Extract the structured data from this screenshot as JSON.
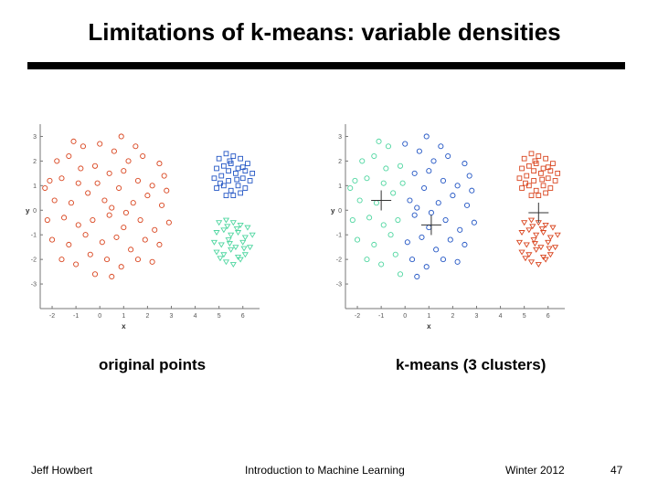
{
  "slide": {
    "title": "Limitations of k-means: variable densities",
    "caption_left": "original points",
    "caption_right": "k-means (3 clusters)",
    "footer": {
      "author": "Jeff Howbert",
      "course": "Introduction to Machine Learning",
      "term": "Winter 2012",
      "page": "47"
    }
  },
  "colors": {
    "red": "#d9451f",
    "blue": "#2255c4",
    "green": "#4fd6a0",
    "axis": "#777777"
  },
  "chart_data": [
    {
      "type": "scatter",
      "title": "",
      "xlabel": "x",
      "ylabel": "y",
      "xlim": [
        -2.5,
        6.7
      ],
      "ylim": [
        -4,
        3.5
      ],
      "xticks": [
        -2,
        -1,
        0,
        1,
        2,
        3,
        4,
        5,
        6
      ],
      "yticks": [
        3,
        2,
        1,
        0,
        -1,
        -2,
        -3
      ],
      "series": [
        {
          "color": "red",
          "marker": "circle",
          "points": [
            [
              -1.8,
              2.0
            ],
            [
              -1.3,
              2.2
            ],
            [
              -0.7,
              2.6
            ],
            [
              0.0,
              2.7
            ],
            [
              0.6,
              2.4
            ],
            [
              1.2,
              2.0
            ],
            [
              1.8,
              2.2
            ],
            [
              2.5,
              1.9
            ],
            [
              -2.1,
              1.2
            ],
            [
              -1.6,
              1.3
            ],
            [
              -0.8,
              1.7
            ],
            [
              -0.2,
              1.8
            ],
            [
              0.4,
              1.5
            ],
            [
              1.0,
              1.6
            ],
            [
              1.6,
              1.2
            ],
            [
              2.2,
              1.0
            ],
            [
              2.8,
              0.8
            ],
            [
              -1.9,
              0.4
            ],
            [
              -1.2,
              0.3
            ],
            [
              -0.5,
              0.7
            ],
            [
              0.2,
              0.4
            ],
            [
              0.8,
              0.9
            ],
            [
              1.4,
              0.3
            ],
            [
              2.0,
              0.6
            ],
            [
              2.6,
              0.2
            ],
            [
              -2.2,
              -0.4
            ],
            [
              -1.5,
              -0.3
            ],
            [
              -0.9,
              -0.6
            ],
            [
              -0.3,
              -0.4
            ],
            [
              0.4,
              -0.2
            ],
            [
              1.0,
              -0.7
            ],
            [
              1.7,
              -0.4
            ],
            [
              2.3,
              -0.8
            ],
            [
              2.9,
              -0.5
            ],
            [
              -2.0,
              -1.2
            ],
            [
              -1.3,
              -1.4
            ],
            [
              -0.6,
              -1.0
            ],
            [
              0.1,
              -1.3
            ],
            [
              0.7,
              -1.1
            ],
            [
              1.3,
              -1.6
            ],
            [
              1.9,
              -1.2
            ],
            [
              2.5,
              -1.4
            ],
            [
              -1.6,
              -2.0
            ],
            [
              -1.0,
              -2.2
            ],
            [
              -0.4,
              -1.8
            ],
            [
              0.3,
              -2.0
            ],
            [
              0.9,
              -2.3
            ],
            [
              1.6,
              -2.0
            ],
            [
              2.2,
              -2.1
            ],
            [
              -1.1,
              2.8
            ],
            [
              0.9,
              3.0
            ],
            [
              -0.2,
              -2.6
            ],
            [
              0.5,
              -2.7
            ],
            [
              -0.9,
              1.1
            ],
            [
              0.5,
              0.1
            ],
            [
              1.1,
              -0.1
            ],
            [
              -0.1,
              1.1
            ],
            [
              2.7,
              1.4
            ],
            [
              -2.3,
              0.9
            ],
            [
              1.5,
              2.6
            ]
          ]
        },
        {
          "color": "blue",
          "marker": "square",
          "points": [
            [
              5.0,
              2.1
            ],
            [
              5.3,
              2.3
            ],
            [
              5.6,
              2.2
            ],
            [
              5.9,
              2.1
            ],
            [
              6.2,
              1.9
            ],
            [
              4.9,
              1.7
            ],
            [
              5.2,
              1.8
            ],
            [
              5.5,
              1.9
            ],
            [
              5.8,
              1.7
            ],
            [
              6.1,
              1.6
            ],
            [
              6.4,
              1.5
            ],
            [
              4.8,
              1.3
            ],
            [
              5.1,
              1.4
            ],
            [
              5.4,
              1.2
            ],
            [
              5.7,
              1.5
            ],
            [
              6.0,
              1.3
            ],
            [
              6.3,
              1.2
            ],
            [
              4.9,
              0.9
            ],
            [
              5.2,
              1.0
            ],
            [
              5.5,
              0.8
            ],
            [
              5.8,
              1.0
            ],
            [
              6.1,
              0.9
            ],
            [
              5.3,
              0.6
            ],
            [
              5.6,
              0.6
            ],
            [
              5.9,
              0.7
            ],
            [
              5.4,
              1.6
            ],
            [
              5.75,
              1.25
            ],
            [
              5.05,
              1.1
            ],
            [
              6.0,
              1.75
            ],
            [
              5.45,
              2.0
            ]
          ]
        },
        {
          "color": "green",
          "marker": "triangle",
          "points": [
            [
              5.0,
              -0.5
            ],
            [
              5.3,
              -0.4
            ],
            [
              5.6,
              -0.5
            ],
            [
              5.9,
              -0.6
            ],
            [
              6.2,
              -0.7
            ],
            [
              4.9,
              -0.9
            ],
            [
              5.2,
              -0.8
            ],
            [
              5.5,
              -1.0
            ],
            [
              5.8,
              -0.9
            ],
            [
              6.1,
              -1.1
            ],
            [
              6.4,
              -1.0
            ],
            [
              4.8,
              -1.3
            ],
            [
              5.1,
              -1.4
            ],
            [
              5.4,
              -1.2
            ],
            [
              5.7,
              -1.5
            ],
            [
              6.0,
              -1.3
            ],
            [
              6.3,
              -1.5
            ],
            [
              4.9,
              -1.7
            ],
            [
              5.2,
              -1.8
            ],
            [
              5.5,
              -1.6
            ],
            [
              5.8,
              -1.9
            ],
            [
              6.1,
              -1.8
            ],
            [
              5.3,
              -2.1
            ],
            [
              5.6,
              -2.2
            ],
            [
              5.9,
              -2.0
            ],
            [
              5.45,
              -1.35
            ],
            [
              5.75,
              -0.75
            ],
            [
              5.05,
              -1.95
            ],
            [
              6.05,
              -1.55
            ],
            [
              5.35,
              -0.65
            ]
          ]
        }
      ]
    },
    {
      "type": "scatter",
      "title": "",
      "xlabel": "x",
      "ylabel": "y",
      "xlim": [
        -2.5,
        6.7
      ],
      "ylim": [
        -4,
        3.5
      ],
      "xticks": [
        -2,
        -1,
        0,
        1,
        2,
        3,
        4,
        5,
        6
      ],
      "yticks": [
        3,
        2,
        1,
        0,
        -1,
        -2,
        -3
      ],
      "centroids": [
        [
          -1.0,
          0.4
        ],
        [
          1.1,
          -0.6
        ],
        [
          5.6,
          -0.1
        ]
      ],
      "series": [
        {
          "color": "green",
          "marker": "circle",
          "points": [
            [
              -1.8,
              2.0
            ],
            [
              -1.3,
              2.2
            ],
            [
              -0.7,
              2.6
            ],
            [
              -2.1,
              1.2
            ],
            [
              -1.6,
              1.3
            ],
            [
              -0.8,
              1.7
            ],
            [
              -1.9,
              0.4
            ],
            [
              -1.2,
              0.3
            ],
            [
              -0.5,
              0.7
            ],
            [
              -2.2,
              -0.4
            ],
            [
              -1.5,
              -0.3
            ],
            [
              -0.9,
              -0.6
            ],
            [
              -2.0,
              -1.2
            ],
            [
              -1.3,
              -1.4
            ],
            [
              -0.6,
              -1.0
            ],
            [
              -1.6,
              -2.0
            ],
            [
              -1.0,
              -2.2
            ],
            [
              -0.4,
              -1.8
            ],
            [
              -1.1,
              2.8
            ],
            [
              -0.2,
              1.8
            ],
            [
              -0.3,
              -0.4
            ],
            [
              -0.9,
              1.1
            ],
            [
              -2.3,
              0.9
            ],
            [
              -0.2,
              -2.6
            ],
            [
              -0.1,
              1.1
            ]
          ]
        },
        {
          "color": "blue",
          "marker": "circle",
          "points": [
            [
              0.0,
              2.7
            ],
            [
              0.6,
              2.4
            ],
            [
              1.2,
              2.0
            ],
            [
              1.8,
              2.2
            ],
            [
              2.5,
              1.9
            ],
            [
              0.4,
              1.5
            ],
            [
              1.0,
              1.6
            ],
            [
              1.6,
              1.2
            ],
            [
              2.2,
              1.0
            ],
            [
              2.8,
              0.8
            ],
            [
              0.2,
              0.4
            ],
            [
              0.8,
              0.9
            ],
            [
              1.4,
              0.3
            ],
            [
              2.0,
              0.6
            ],
            [
              2.6,
              0.2
            ],
            [
              0.4,
              -0.2
            ],
            [
              1.0,
              -0.7
            ],
            [
              1.7,
              -0.4
            ],
            [
              2.3,
              -0.8
            ],
            [
              2.9,
              -0.5
            ],
            [
              0.1,
              -1.3
            ],
            [
              0.7,
              -1.1
            ],
            [
              1.3,
              -1.6
            ],
            [
              1.9,
              -1.2
            ],
            [
              2.5,
              -1.4
            ],
            [
              0.3,
              -2.0
            ],
            [
              0.9,
              -2.3
            ],
            [
              1.6,
              -2.0
            ],
            [
              2.2,
              -2.1
            ],
            [
              0.9,
              3.0
            ],
            [
              0.5,
              -2.7
            ],
            [
              0.5,
              0.1
            ],
            [
              1.1,
              -0.1
            ],
            [
              2.7,
              1.4
            ],
            [
              1.5,
              2.6
            ]
          ]
        },
        {
          "color": "red",
          "marker": "square",
          "points": [
            [
              5.0,
              2.1
            ],
            [
              5.3,
              2.3
            ],
            [
              5.6,
              2.2
            ],
            [
              5.9,
              2.1
            ],
            [
              6.2,
              1.9
            ],
            [
              4.9,
              1.7
            ],
            [
              5.2,
              1.8
            ],
            [
              5.5,
              1.9
            ],
            [
              5.8,
              1.7
            ],
            [
              6.1,
              1.6
            ],
            [
              6.4,
              1.5
            ],
            [
              4.8,
              1.3
            ],
            [
              5.1,
              1.4
            ],
            [
              5.4,
              1.2
            ],
            [
              5.7,
              1.5
            ],
            [
              6.0,
              1.3
            ],
            [
              6.3,
              1.2
            ],
            [
              4.9,
              0.9
            ],
            [
              5.2,
              1.0
            ],
            [
              5.5,
              0.8
            ],
            [
              5.8,
              1.0
            ],
            [
              6.1,
              0.9
            ],
            [
              5.3,
              0.6
            ],
            [
              5.6,
              0.6
            ],
            [
              5.9,
              0.7
            ],
            [
              5.4,
              1.6
            ],
            [
              5.75,
              1.25
            ],
            [
              5.05,
              1.1
            ],
            [
              6.0,
              1.75
            ],
            [
              5.45,
              2.0
            ]
          ]
        },
        {
          "color": "red",
          "marker": "triangle",
          "points": [
            [
              5.0,
              -0.5
            ],
            [
              5.3,
              -0.4
            ],
            [
              5.6,
              -0.5
            ],
            [
              5.9,
              -0.6
            ],
            [
              6.2,
              -0.7
            ],
            [
              4.9,
              -0.9
            ],
            [
              5.2,
              -0.8
            ],
            [
              5.5,
              -1.0
            ],
            [
              5.8,
              -0.9
            ],
            [
              6.1,
              -1.1
            ],
            [
              6.4,
              -1.0
            ],
            [
              4.8,
              -1.3
            ],
            [
              5.1,
              -1.4
            ],
            [
              5.4,
              -1.2
            ],
            [
              5.7,
              -1.5
            ],
            [
              6.0,
              -1.3
            ],
            [
              6.3,
              -1.5
            ],
            [
              4.9,
              -1.7
            ],
            [
              5.2,
              -1.8
            ],
            [
              5.5,
              -1.6
            ],
            [
              5.8,
              -1.9
            ],
            [
              6.1,
              -1.8
            ],
            [
              5.3,
              -2.1
            ],
            [
              5.6,
              -2.2
            ],
            [
              5.9,
              -2.0
            ],
            [
              5.45,
              -1.35
            ],
            [
              5.75,
              -0.75
            ],
            [
              5.05,
              -1.95
            ],
            [
              6.05,
              -1.55
            ],
            [
              5.35,
              -0.65
            ]
          ]
        }
      ]
    }
  ]
}
